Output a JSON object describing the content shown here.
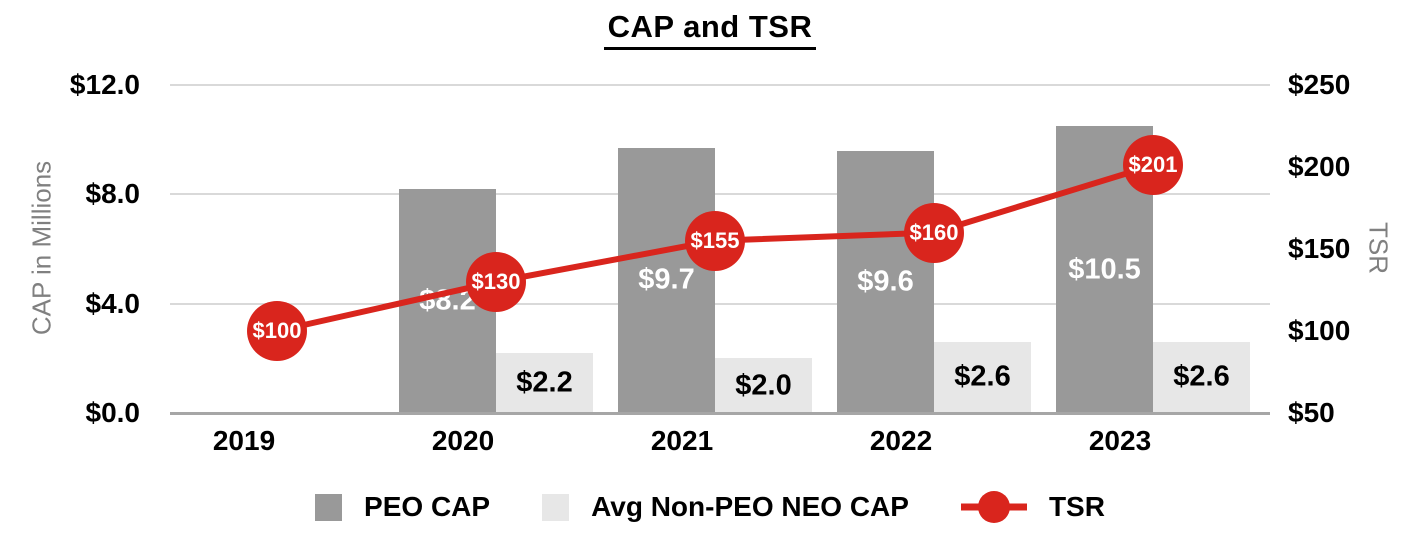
{
  "title": "CAP and TSR",
  "chart_data": {
    "type": "combo-bar-line",
    "categories": [
      "2019",
      "2020",
      "2021",
      "2022",
      "2023"
    ],
    "bar_series": [
      {
        "name": "PEO CAP",
        "axis": "left",
        "color": "#999999",
        "values": [
          null,
          8.2,
          9.7,
          9.6,
          10.5
        ],
        "labels": [
          "",
          "$8.2",
          "$9.7",
          "$9.6",
          "$10.5"
        ],
        "label_color": "#ffffff"
      },
      {
        "name": "Avg Non-PEO NEO CAP",
        "axis": "left",
        "color": "#e7e7e7",
        "values": [
          null,
          2.2,
          2.0,
          2.6,
          2.6
        ],
        "labels": [
          "",
          "$2.2",
          "$2.0",
          "$2.6",
          "$2.6"
        ],
        "label_color": "#000000"
      }
    ],
    "line_series": [
      {
        "name": "TSR",
        "axis": "right",
        "color": "#d9251d",
        "values": [
          100,
          130,
          155,
          160,
          201
        ],
        "labels": [
          "$100",
          "$130",
          "$155",
          "$160",
          "$201"
        ],
        "label_color": "#ffffff"
      }
    ],
    "left_axis": {
      "title": "CAP in Millions",
      "min": 0,
      "max": 12,
      "ticks": [
        "$0.0",
        "$4.0",
        "$8.0",
        "$12.0"
      ],
      "tick_values": [
        0,
        4,
        8,
        12
      ]
    },
    "right_axis": {
      "title": "TSR",
      "min": 50,
      "max": 250,
      "ticks": [
        "$50",
        "$100",
        "$150",
        "$200",
        "$250"
      ],
      "tick_values": [
        50,
        100,
        150,
        200,
        250
      ]
    },
    "grid": true,
    "grid_color": "#d9d9d9",
    "axis_line_color": "#a6a6a6",
    "legend_position": "bottom"
  },
  "legend": [
    {
      "label": "PEO CAP",
      "swatch": "square",
      "color": "#999999"
    },
    {
      "label": "Avg Non-PEO NEO CAP",
      "swatch": "square",
      "color": "#e7e7e7"
    },
    {
      "label": "TSR",
      "swatch": "line-dot",
      "color": "#d9251d"
    }
  ]
}
